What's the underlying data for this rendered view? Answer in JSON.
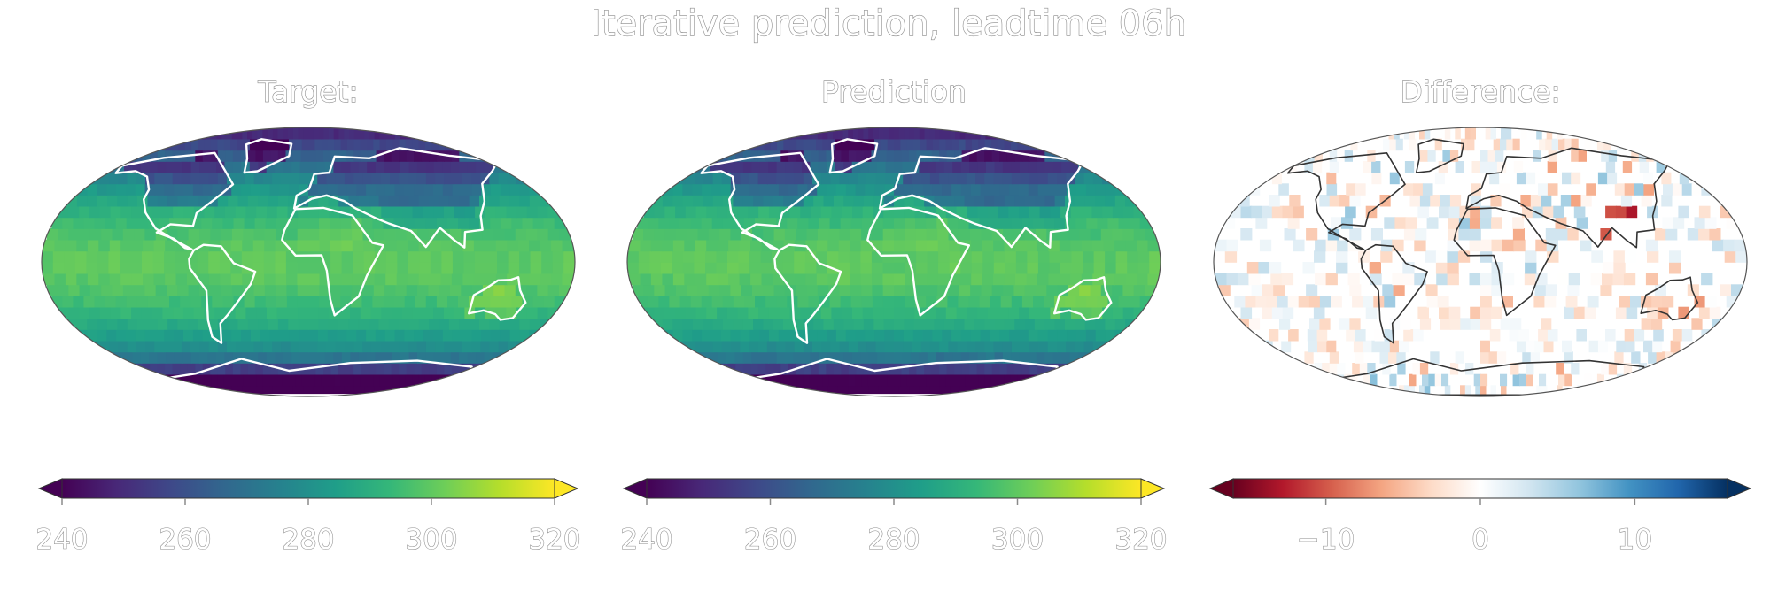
{
  "figure": {
    "title": "Iterative prediction, leadtime 06h"
  },
  "panels": [
    {
      "id": "target",
      "title": "Target:",
      "colormap": "viridis",
      "cbar_ticks": [
        240,
        260,
        280,
        300,
        320
      ],
      "cbar_tick_labels": [
        "240",
        "260",
        "280",
        "300",
        "320"
      ]
    },
    {
      "id": "prediction",
      "title": "Prediction",
      "colormap": "viridis",
      "cbar_ticks": [
        240,
        260,
        280,
        300,
        320
      ],
      "cbar_tick_labels": [
        "240",
        "260",
        "280",
        "300",
        "320"
      ]
    },
    {
      "id": "difference",
      "title": "Difference:",
      "colormap": "RdBu",
      "cbar_ticks": [
        -10,
        0,
        10
      ],
      "cbar_tick_labels": [
        "−10",
        "0",
        "10"
      ]
    }
  ],
  "chart_data": [
    {
      "type": "heatmap",
      "title": "Target:",
      "projection": "Robinson (global map)",
      "colormap": "viridis",
      "colorbar": {
        "range": [
          240,
          320
        ],
        "ticks": [
          240,
          260,
          280,
          300,
          320
        ],
        "extend": "both"
      }
    },
    {
      "type": "heatmap",
      "title": "Prediction",
      "projection": "Robinson (global map)",
      "colormap": "viridis",
      "colorbar": {
        "range": [
          240,
          320
        ],
        "ticks": [
          240,
          260,
          280,
          300,
          320
        ],
        "extend": "both"
      }
    },
    {
      "type": "heatmap",
      "title": "Difference:",
      "projection": "Robinson (global map)",
      "colormap": "RdBu",
      "colorbar": {
        "range": [
          -16,
          16
        ],
        "ticks": [
          -10,
          0,
          10
        ],
        "extend": "both"
      }
    }
  ],
  "colors": {
    "viridis": [
      "#440154",
      "#482878",
      "#3e4989",
      "#31688e",
      "#26828e",
      "#1f9e89",
      "#35b779",
      "#6ece58",
      "#b5de2b",
      "#fde725"
    ],
    "rdbu": [
      "#67001f",
      "#b2182b",
      "#d6604d",
      "#f4a582",
      "#fddbc7",
      "#ffffff",
      "#d1e5f0",
      "#92c5de",
      "#4393c3",
      "#2166ac",
      "#053061"
    ],
    "coastline": "#ffffff",
    "coastline_diff": "#333333"
  }
}
